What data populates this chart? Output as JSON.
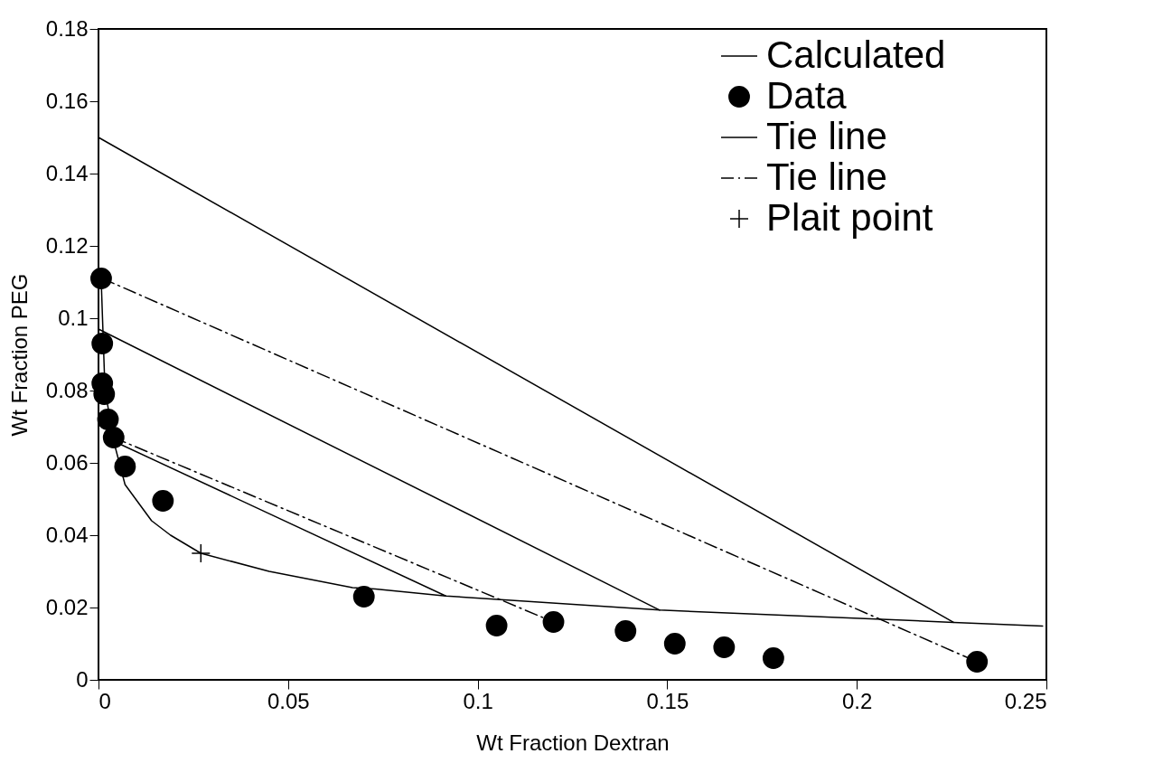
{
  "chart_data": {
    "type": "line",
    "xlabel": "Wt Fraction Dextran",
    "ylabel": "Wt Fraction PEG",
    "xlim": [
      0,
      0.25
    ],
    "xticks": [
      0,
      0.05,
      0.1,
      0.15,
      0.2,
      0.25
    ],
    "ylim": [
      0,
      0.18
    ],
    "yticks": [
      0,
      0.02,
      0.04,
      0.06,
      0.08,
      0.1,
      0.12,
      0.14,
      0.16,
      0.18
    ],
    "grid": false,
    "legend": "top right",
    "series": [
      {
        "name": "Calculated",
        "color": "#000000",
        "line_style": "solid",
        "marker": "none",
        "x": [
          0.0007,
          0.0017,
          0.004,
          0.007,
          0.014,
          0.019,
          0.027,
          0.045,
          0.067,
          0.073,
          0.0916,
          0.148,
          0.2255,
          0.249
        ],
        "values": [
          0.111,
          0.0805,
          0.066,
          0.054,
          0.044,
          0.04,
          0.035,
          0.03,
          0.0255,
          0.0251,
          0.0232,
          0.0193,
          0.0159,
          0.0149
        ]
      },
      {
        "name": "Data",
        "type": "scatter",
        "color": "#000000",
        "marker": "circle",
        "x": [
          0.0007,
          0.001,
          0.001,
          0.0015,
          0.0025,
          0.004,
          0.007,
          0.017,
          0.07,
          0.105,
          0.12,
          0.139,
          0.152,
          0.165,
          0.178,
          0.2317
        ],
        "values": [
          0.111,
          0.093,
          0.082,
          0.079,
          0.072,
          0.067,
          0.059,
          0.0495,
          0.023,
          0.015,
          0.016,
          0.0135,
          0.01,
          0.009,
          0.006,
          0.005
        ]
      },
      {
        "name": "Tie line",
        "color": "#000000",
        "line_style": "solid",
        "marker": "none",
        "x": [
          0,
          0.2255
        ],
        "values": [
          0.15,
          0.0159
        ]
      },
      {
        "name": "Tie line",
        "color": "#000000",
        "line_style": "dashdot",
        "marker": "none",
        "x": [
          0.001,
          0.2317
        ],
        "values": [
          0.111,
          0.005
        ]
      },
      {
        "name": "Plait point",
        "type": "scatter",
        "color": "#000000",
        "marker": "cross",
        "x": [
          0.027
        ],
        "values": [
          0.035
        ]
      },
      {
        "color": "#000000",
        "line_style": "solid",
        "marker": "none",
        "x": [
          0,
          0.148
        ],
        "values": [
          0.097,
          0.0193
        ]
      },
      {
        "color": "#000000",
        "line_style": "dashdot",
        "marker": "none",
        "x": [
          0.004,
          0.12
        ],
        "values": [
          0.067,
          0.016
        ]
      },
      {
        "color": "#000000",
        "line_style": "solid",
        "marker": "none",
        "x": [
          0.004,
          0.0916
        ],
        "values": [
          0.066,
          0.0232
        ]
      }
    ]
  }
}
